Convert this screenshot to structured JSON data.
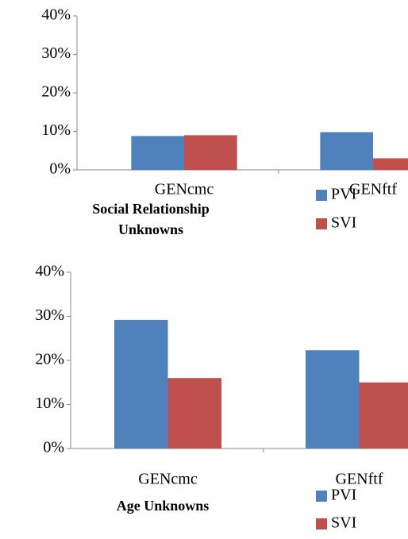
{
  "chart_data": [
    {
      "type": "bar",
      "title": "Social Relationship Unknowns",
      "categories": [
        "GENcmc",
        "GENftf"
      ],
      "series": [
        {
          "name": "PVI",
          "color": "#4f81bd",
          "values": [
            8.8,
            9.8
          ]
        },
        {
          "name": "SVI",
          "color": "#c0504d",
          "values": [
            9.0,
            3.0
          ]
        }
      ],
      "ylim": [
        0,
        40
      ],
      "yticks": [
        {
          "value": 0,
          "label": "0%"
        },
        {
          "value": 10,
          "label": "10%"
        },
        {
          "value": 20,
          "label": "20%"
        },
        {
          "value": 30,
          "label": "30%"
        },
        {
          "value": 40,
          "label": "40%"
        }
      ],
      "grid": false,
      "legend": "bottom-right"
    },
    {
      "type": "bar",
      "title": "Age Unknowns",
      "categories": [
        "GENcmc",
        "GENftf"
      ],
      "series": [
        {
          "name": "PVI",
          "color": "#4f81bd",
          "values": [
            29.2,
            22.3
          ]
        },
        {
          "name": "SVI",
          "color": "#c0504d",
          "values": [
            16.0,
            15.0
          ]
        }
      ],
      "ylim": [
        0,
        40
      ],
      "yticks": [
        {
          "value": 0,
          "label": "0%"
        },
        {
          "value": 10,
          "label": "10%"
        },
        {
          "value": 20,
          "label": "20%"
        },
        {
          "value": 30,
          "label": "30%"
        },
        {
          "value": 40,
          "label": "40%"
        }
      ],
      "grid": false,
      "legend": "bottom-right"
    }
  ]
}
